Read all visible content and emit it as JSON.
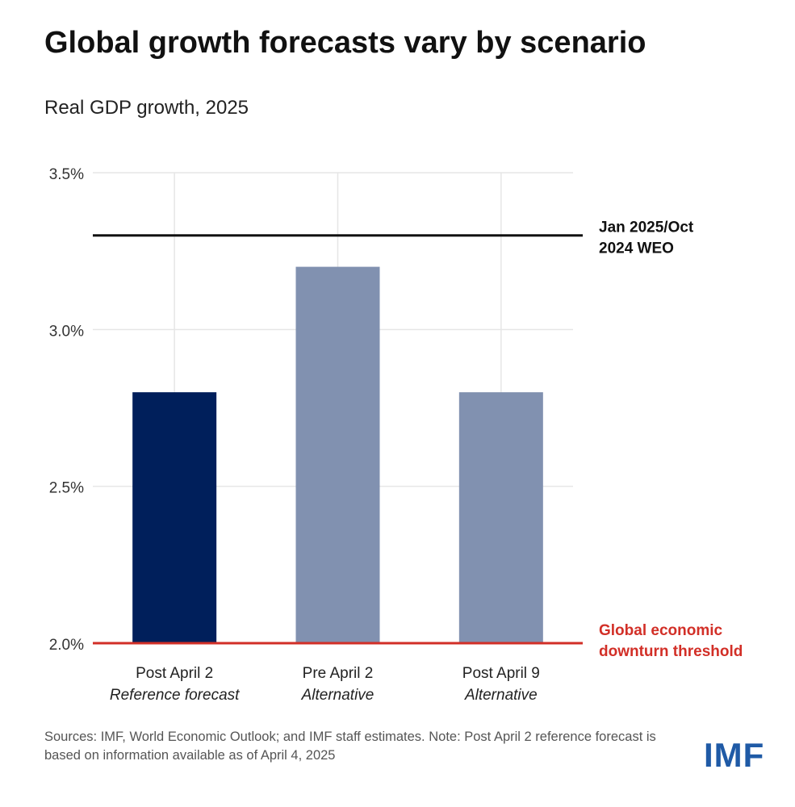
{
  "title": "Global growth forecasts vary by scenario",
  "subtitle": "Real GDP growth, 2025",
  "chart_data": {
    "type": "bar",
    "categories": [
      {
        "label": "Post April 2",
        "sublabel": "Reference forecast",
        "value": 2.8,
        "color": "#001f5b"
      },
      {
        "label": "Pre April 2",
        "sublabel": "Alternative",
        "value": 3.2,
        "color": "#8191b0"
      },
      {
        "label": "Post April 9",
        "sublabel": "Alternative",
        "value": 2.8,
        "color": "#8191b0"
      }
    ],
    "ylim": [
      2.0,
      3.5
    ],
    "yticks": [
      {
        "value": 2.0,
        "label": "2.0%"
      },
      {
        "value": 2.5,
        "label": "2.5%"
      },
      {
        "value": 3.0,
        "label": "3.0%"
      },
      {
        "value": 3.5,
        "label": "3.5%"
      }
    ],
    "grid": true,
    "reference_lines": [
      {
        "value": 3.3,
        "label_lines": [
          "Jan 2025/Oct",
          "2024 WEO"
        ],
        "color": "#111111"
      },
      {
        "value": 2.0,
        "label_lines": [
          "Global economic",
          "downturn threshold"
        ],
        "color": "#d22f27"
      }
    ]
  },
  "footer": {
    "text": "Sources: IMF, World Economic Outlook; and IMF staff estimates. Note: Post April 2 reference forecast is based on information available as of April 4, 2025"
  },
  "logo": "IMF"
}
